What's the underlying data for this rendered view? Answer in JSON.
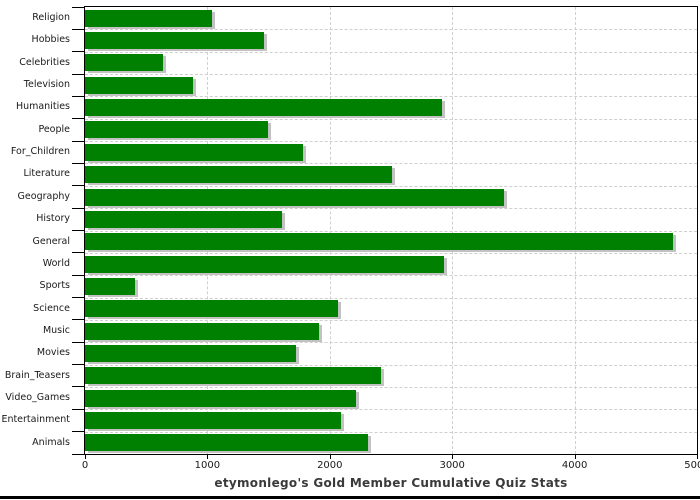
{
  "chart_data": {
    "type": "bar",
    "orientation": "horizontal",
    "title": "etymonlego's Gold Member Cumulative Quiz Stats",
    "categories": [
      "Religion",
      "Hobbies",
      "Celebrities",
      "Television",
      "Humanities",
      "People",
      "For_Children",
      "Literature",
      "Geography",
      "History",
      "General",
      "World",
      "Sports",
      "Science",
      "Music",
      "Movies",
      "Brain_Teasers",
      "Video_Games",
      "Entertainment",
      "Animals"
    ],
    "values": [
      1035,
      1465,
      640,
      885,
      2920,
      1495,
      1780,
      2510,
      3420,
      1610,
      4800,
      2935,
      405,
      2065,
      1915,
      1725,
      2415,
      2215,
      2090,
      2310
    ],
    "xlabel": "",
    "ylabel": "",
    "xlim": [
      0,
      5000
    ],
    "x_ticks": [
      0,
      1000,
      2000,
      3000,
      4000,
      5000
    ],
    "x_tick_labels": [
      "0",
      "1000",
      "2000",
      "3000",
      "4000",
      "5000"
    ],
    "grid": "dashed vertical lines at each 1000; dashed horizontal lines at category boundaries",
    "legend": "none",
    "colors": {
      "bar": "#008000",
      "bar_shadow": "#c2c2c2",
      "gridline": "#cfcfcf",
      "axis": "#000000",
      "title_text": "#3a3a3a",
      "label_text": "#1a1a1a",
      "background": "#ffffff"
    }
  }
}
